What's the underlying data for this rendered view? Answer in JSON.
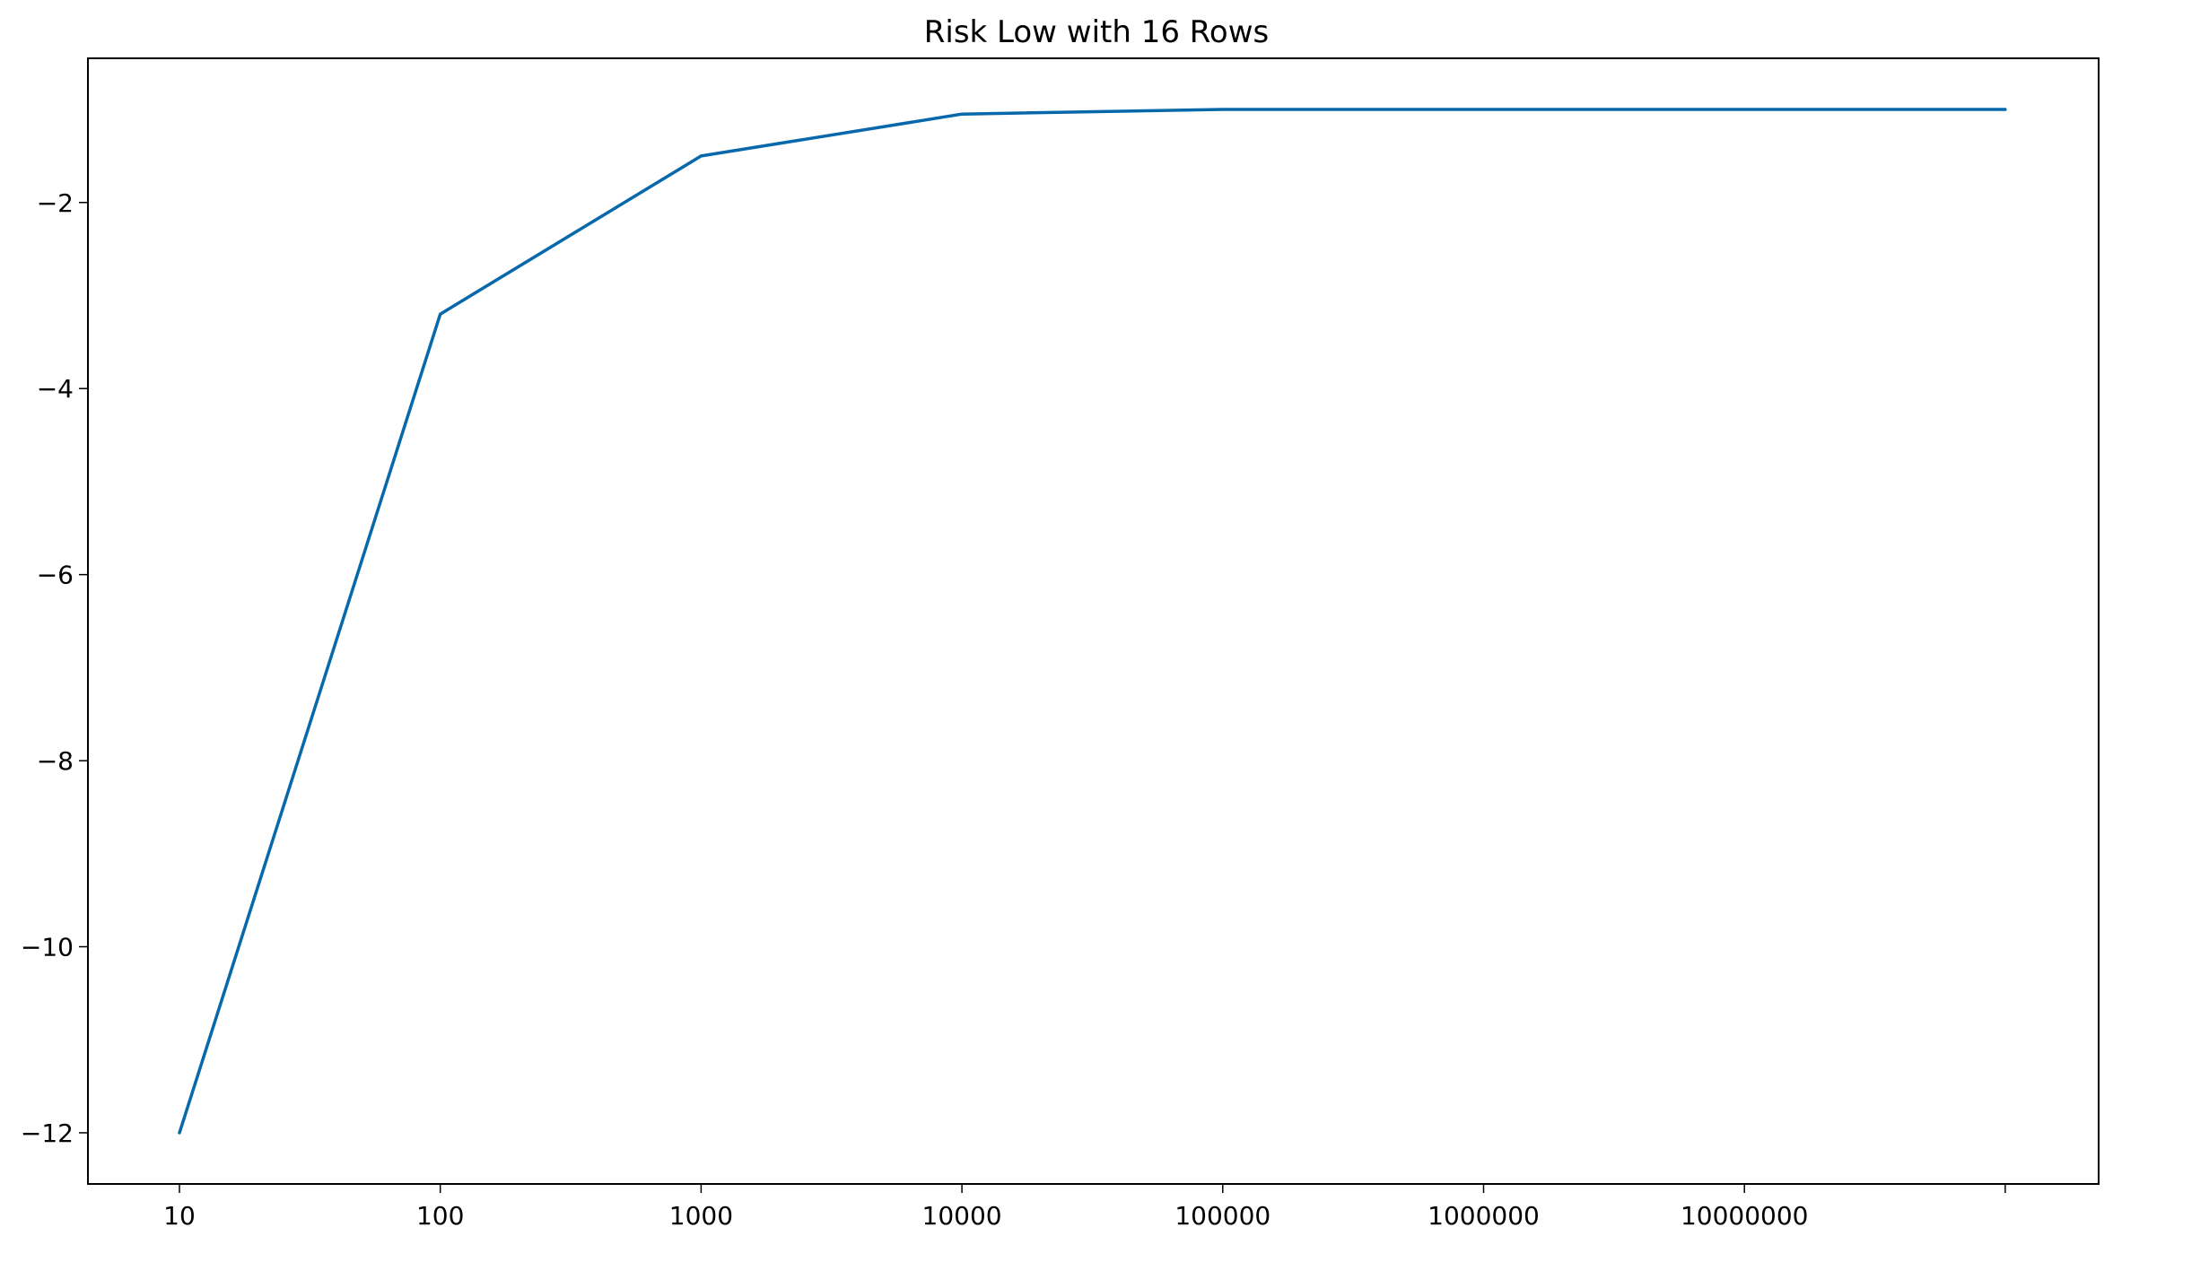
{
  "chart_data": {
    "type": "line",
    "title": "Risk Low with 16 Rows",
    "xlabel": "",
    "ylabel": "",
    "x_scale": "log",
    "x": [
      10,
      100,
      1000,
      10000,
      100000,
      1000000,
      10000000,
      100000000
    ],
    "x_tick_labels": [
      "10",
      "100",
      "1000",
      "10000",
      "100000",
      "1000000",
      "10000000",
      ""
    ],
    "y_ticks": [
      -12,
      -10,
      -8,
      -6,
      -4,
      -2
    ],
    "y_tick_labels": [
      "−12",
      "−10",
      "−8",
      "−6",
      "−4",
      "−2"
    ],
    "ylim": [
      -12.55,
      -0.45
    ],
    "grid": false,
    "series": [
      {
        "values": [
          -12.0,
          -3.2,
          -1.5,
          -1.05,
          -1.0,
          -1.0,
          -1.0,
          -1.0
        ],
        "color": "#0868ac"
      }
    ]
  }
}
